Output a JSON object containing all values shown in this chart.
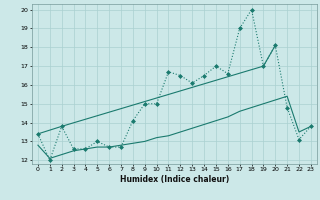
{
  "xlabel": "Humidex (Indice chaleur)",
  "xlim": [
    -0.5,
    23.5
  ],
  "ylim": [
    11.8,
    20.3
  ],
  "yticks": [
    12,
    13,
    14,
    15,
    16,
    17,
    18,
    19,
    20
  ],
  "xticks": [
    0,
    1,
    2,
    3,
    4,
    5,
    6,
    7,
    8,
    9,
    10,
    11,
    12,
    13,
    14,
    15,
    16,
    17,
    18,
    19,
    20,
    21,
    22,
    23
  ],
  "line_color": "#1a7a6e",
  "bg_color": "#cce8e8",
  "grid_color": "#aad0d0",
  "line1_x": [
    0,
    1,
    2,
    3,
    4,
    5,
    6,
    7,
    8,
    9,
    10,
    11,
    12,
    13,
    14,
    15,
    16,
    17,
    18,
    19,
    20,
    21,
    22,
    23
  ],
  "line1_y": [
    13.4,
    12.0,
    13.8,
    12.6,
    12.6,
    13.0,
    12.7,
    12.7,
    14.1,
    15.0,
    15.0,
    16.7,
    16.5,
    16.1,
    16.5,
    17.0,
    16.6,
    19.0,
    20.0,
    17.0,
    18.1,
    14.8,
    13.1,
    13.8
  ],
  "line2_x": [
    0,
    2,
    19,
    20
  ],
  "line2_y": [
    13.4,
    13.8,
    17.0,
    18.1
  ],
  "line3_x": [
    0,
    1,
    2,
    3,
    4,
    5,
    6,
    7,
    8,
    9,
    10,
    11,
    12,
    13,
    14,
    15,
    16,
    17,
    18,
    19,
    20,
    21,
    22,
    23
  ],
  "line3_y": [
    12.8,
    12.1,
    12.3,
    12.5,
    12.6,
    12.7,
    12.7,
    12.8,
    12.9,
    13.0,
    13.2,
    13.3,
    13.5,
    13.7,
    13.9,
    14.1,
    14.3,
    14.6,
    14.8,
    15.0,
    15.2,
    15.4,
    13.5,
    13.8
  ]
}
